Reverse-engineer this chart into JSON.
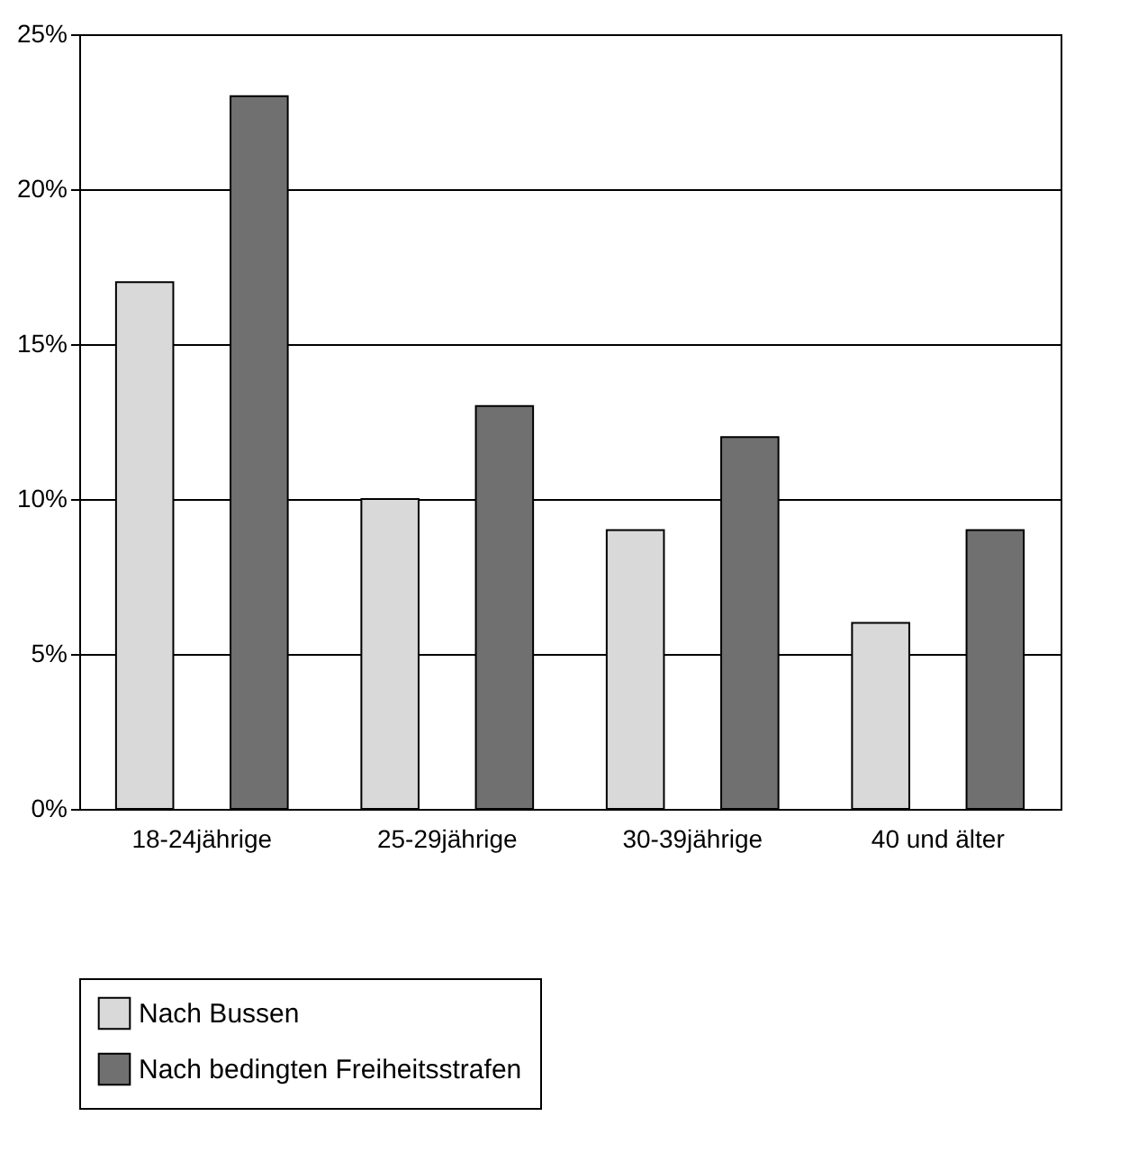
{
  "chart_data": {
    "type": "bar",
    "categories": [
      "18-24jährige",
      "25-29jährige",
      "30-39jährige",
      "40 und älter"
    ],
    "series": [
      {
        "name": "Nach Bussen",
        "color": "#d9d9d9",
        "values": [
          17,
          10,
          9,
          6
        ]
      },
      {
        "name": "Nach bedingten Freiheitsstrafen",
        "color": "#707070",
        "values": [
          23,
          13,
          12,
          9
        ]
      }
    ],
    "ylim": [
      0,
      25
    ],
    "yticks": [
      {
        "value": 0,
        "label": "0%"
      },
      {
        "value": 5,
        "label": "5%"
      },
      {
        "value": 10,
        "label": "10%"
      },
      {
        "value": 15,
        "label": "15%"
      },
      {
        "value": 20,
        "label": "20%"
      },
      {
        "value": 25,
        "label": "25%"
      }
    ],
    "grid": "y",
    "legend": "bottom"
  }
}
